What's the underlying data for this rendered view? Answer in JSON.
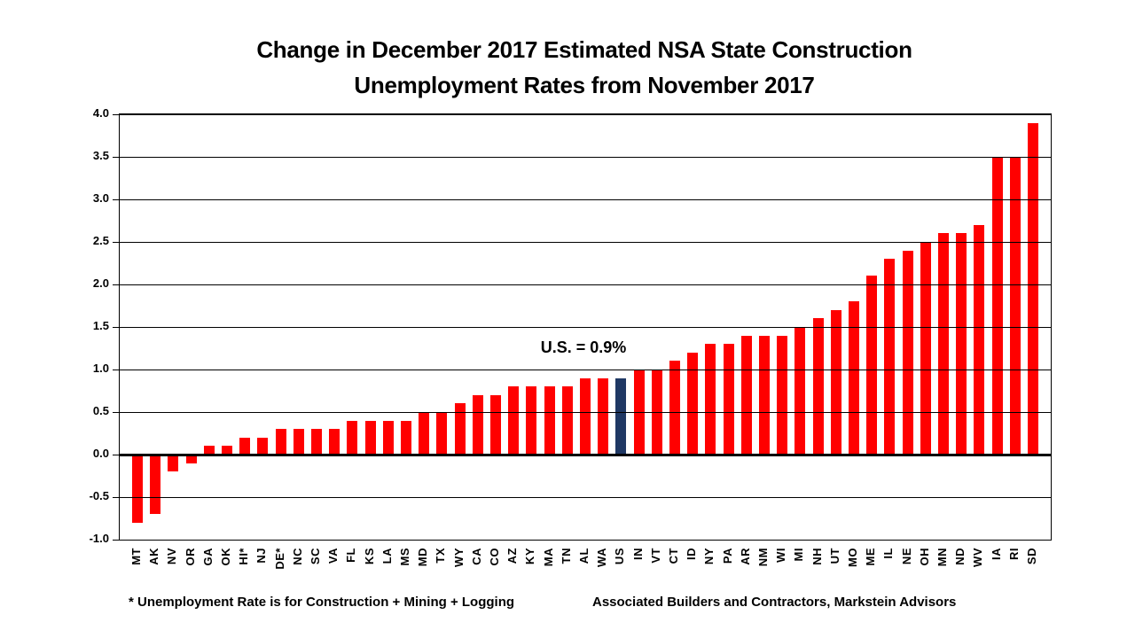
{
  "title": {
    "line1": "Change in December 2017 Estimated NSA State Construction",
    "line2": "Unemployment Rates from November 2017"
  },
  "annotation": "U.S. = 0.9%",
  "footnotes": {
    "left": "* Unemployment Rate is for Construction + Mining + Logging",
    "right": "Associated Builders and Contractors, Markstein Advisors"
  },
  "colors": {
    "bar": "#FF0000",
    "highlight_bar": "#1F3864",
    "grid": "#000000",
    "background": "#FFFFFF"
  },
  "chart_data": {
    "type": "bar",
    "title": "Change in December 2017 Estimated NSA State Construction Unemployment Rates from November 2017",
    "xlabel": "",
    "ylabel": "",
    "ylim": [
      -1.0,
      4.0
    ],
    "ytick_labels": [
      "4.0",
      "3.5",
      "3.0",
      "2.5",
      "2.0",
      "1.5",
      "1.0",
      "0.5",
      "0.0",
      "-0.5",
      "-1.0"
    ],
    "grid": true,
    "highlight_category": "US",
    "categories": [
      "MT",
      "AK",
      "NV",
      "OR",
      "GA",
      "OK",
      "HI*",
      "NJ",
      "DE*",
      "NC",
      "SC",
      "VA",
      "FL",
      "KS",
      "LA",
      "MS",
      "MD",
      "TX",
      "WY",
      "CA",
      "CO",
      "AZ",
      "KY",
      "MA",
      "TN",
      "AL",
      "WA",
      "US",
      "IN",
      "VT",
      "CT",
      "ID",
      "NY",
      "PA",
      "AR",
      "NM",
      "WI",
      "MI",
      "NH",
      "UT",
      "MO",
      "ME",
      "IL",
      "NE",
      "OH",
      "MN",
      "ND",
      "WV",
      "IA",
      "RI",
      "SD"
    ],
    "values": [
      -0.8,
      -0.7,
      -0.2,
      -0.1,
      0.1,
      0.1,
      0.2,
      0.2,
      0.3,
      0.3,
      0.3,
      0.3,
      0.4,
      0.4,
      0.4,
      0.4,
      0.5,
      0.5,
      0.6,
      0.7,
      0.7,
      0.8,
      0.8,
      0.8,
      0.8,
      0.9,
      0.9,
      0.9,
      1.0,
      1.0,
      1.1,
      1.2,
      1.3,
      1.3,
      1.4,
      1.4,
      1.4,
      1.5,
      1.6,
      1.7,
      1.8,
      2.1,
      2.3,
      2.4,
      2.5,
      2.6,
      2.6,
      2.7,
      3.5,
      3.5,
      3.9
    ]
  }
}
